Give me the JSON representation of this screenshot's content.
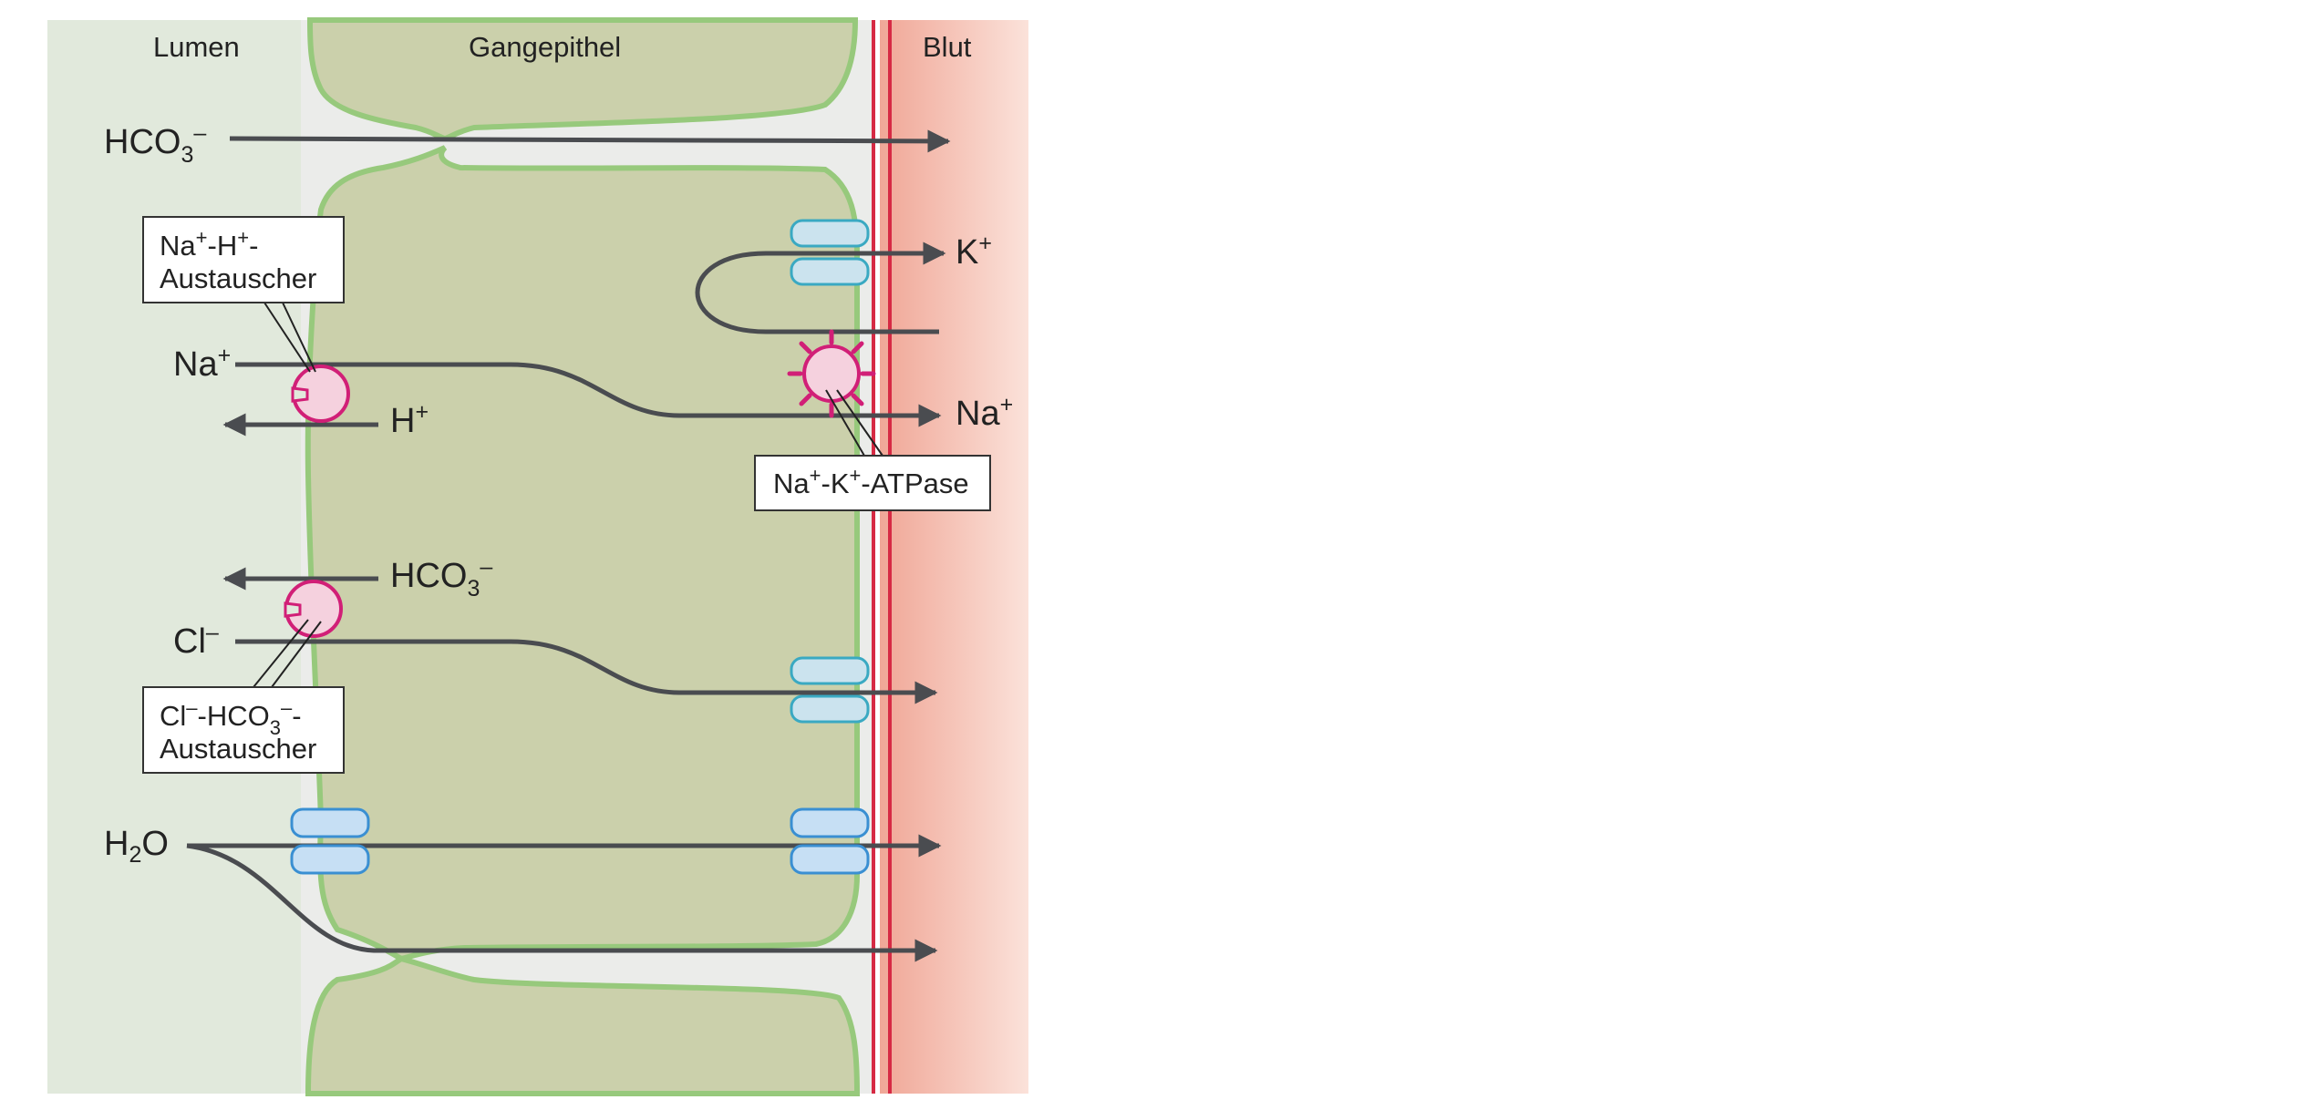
{
  "header": {
    "lumen": "Lumen",
    "epithel": "Gangepithel",
    "blood": "Blut"
  },
  "ions": {
    "hco3_top": {
      "base": "HCO",
      "sub": "3",
      "sup": "–"
    },
    "na_left": {
      "base": "Na",
      "sup": "+"
    },
    "h": {
      "base": "H",
      "sup": "+"
    },
    "hco3_mid": {
      "base": "HCO",
      "sub": "3",
      "sup": "–"
    },
    "cl": {
      "base": "Cl",
      "sup": "–"
    },
    "h2o": {
      "pre": "H",
      "sub": "2",
      "post": "O"
    },
    "k": {
      "base": "K",
      "sup": "+"
    },
    "na_right": {
      "base": "Na",
      "sup": "+"
    }
  },
  "labels": {
    "na_h_exchanger": {
      "line1_a": "Na",
      "line1_b": "-H",
      "line1_c": "-",
      "sup": "+",
      "line2": "Austauscher"
    },
    "na_k_atpase": {
      "a": "Na",
      "b": "-K",
      "c": "-ATPase",
      "sup": "+"
    },
    "cl_hco3_exchanger": {
      "a": "Cl",
      "sup1": "–",
      "b": "-HCO",
      "sub": "3",
      "sup2": "–",
      "c": "-",
      "line2": "Austauscher"
    }
  },
  "colors": {
    "lumen_bg": "#e1e9dc",
    "cell_fill": "#cbd0ab",
    "cell_stroke": "#97c97c",
    "blood_bg": "#f3c0b3",
    "vessel_line": "#d62a44",
    "arrow": "#4a4c50",
    "transporter_fill": "#f5d1de",
    "transporter_stroke": "#d11f77",
    "channel_fill": "#cbe3ee",
    "channel_stroke": "#3aa9c2",
    "aquaporin_fill": "#c6dff4",
    "aquaporin_stroke": "#3a8fd2"
  }
}
